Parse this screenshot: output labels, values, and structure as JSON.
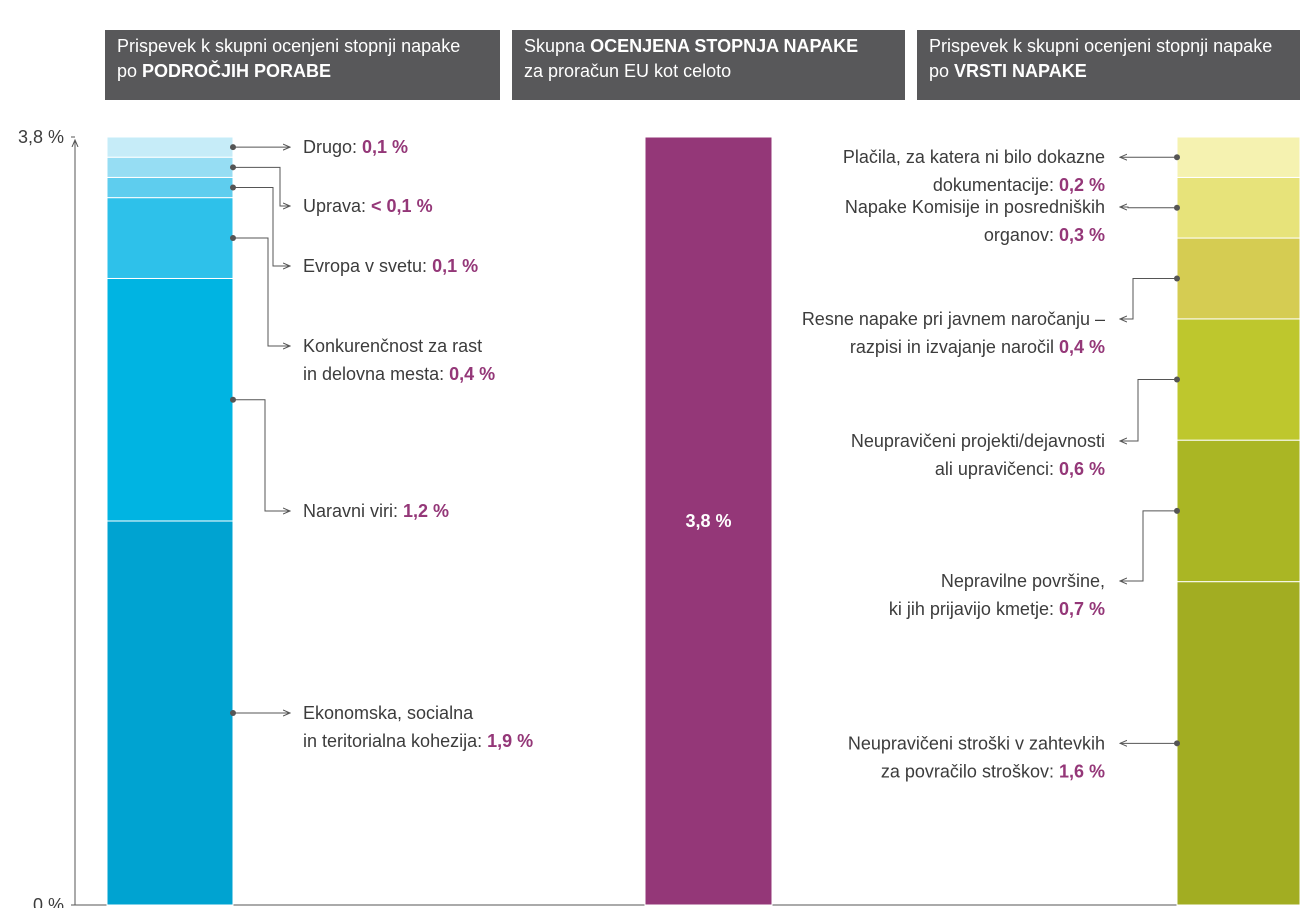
{
  "chart_data": {
    "type": "stacked_bar",
    "ylim": [
      0,
      3.8
    ],
    "yticks": [
      {
        "value": 0,
        "label": "0 %"
      },
      {
        "value": 3.8,
        "label": "3,8 %"
      }
    ],
    "bars": [
      {
        "header": [
          [
            {
              "text": "Prispevek k skupni ocenjeni stopnji napake",
              "bold": false
            }
          ],
          [
            {
              "text": "po",
              "bold": false
            },
            {
              "text": "PODROČJIH PORABE",
              "bold": true
            }
          ]
        ],
        "label_side": "right",
        "segments": [
          {
            "name": [
              "Ekonomska, socialna",
              "in teritorialna kohezija:"
            ],
            "value": 1.9,
            "value_label": "1,9 %",
            "color": "#00a3d1"
          },
          {
            "name": [
              "Naravni viri:"
            ],
            "value": 1.2,
            "value_label": "1,2 %",
            "color": "#00b4e2"
          },
          {
            "name": [
              "Konkurenčnost za rast",
              "in delovna mesta:"
            ],
            "value": 0.4,
            "value_label": "0,4 %",
            "color": "#2ec1ea"
          },
          {
            "name": [
              "Evropa v svetu:"
            ],
            "value": 0.1,
            "value_label": "0,1 %",
            "color": "#5ecdee"
          },
          {
            "name": [
              "Uprava:"
            ],
            "value": 0.1,
            "value_label": "< 0,1 %",
            "color": "#96ddf3"
          },
          {
            "name": [
              "Drugo:"
            ],
            "value": 0.1,
            "value_label": "0,1 %",
            "color": "#c6ecf8"
          }
        ]
      },
      {
        "header": [
          [
            {
              "text": "Skupna",
              "bold": false
            },
            {
              "text": "OCENJENA STOPNJA NAPAKE",
              "bold": true
            }
          ],
          [
            {
              "text": "za proračun EU kot celoto",
              "bold": false
            }
          ]
        ],
        "label_side": "inside",
        "segments": [
          {
            "value": 3.8,
            "value_label": "3,8 %",
            "color": "#943778"
          }
        ]
      },
      {
        "header": [
          [
            {
              "text": "Prispevek k skupni ocenjeni stopnji napake",
              "bold": false
            }
          ],
          [
            {
              "text": "po",
              "bold": false
            },
            {
              "text": "VRSTI NAPAKE",
              "bold": true
            }
          ]
        ],
        "label_side": "left",
        "segments": [
          {
            "name": [
              "Neupravičeni stroški v zahtevkih",
              "za povračilo stroškov:"
            ],
            "value": 1.6,
            "value_label": "1,6 %",
            "color": "#a2ad22"
          },
          {
            "name": [
              "Nepravilne površine,",
              "ki jih prijavijo kmetje:"
            ],
            "value": 0.7,
            "value_label": "0,7 %",
            "color": "#aab624"
          },
          {
            "name": [
              "Neupravičeni projekti/dejavnosti",
              "ali upravičenci:"
            ],
            "value": 0.6,
            "value_label": "0,6 %",
            "color": "#bec72d"
          },
          {
            "name": [
              "Resne napake pri javnem naročanju –",
              "razpisi in izvajanje naročil"
            ],
            "value": 0.4,
            "value_label": "0,4 %",
            "color": "#d5cc52"
          },
          {
            "name": [
              "Napake Komisije in posredniških",
              "organov:"
            ],
            "value": 0.3,
            "value_label": "0,3 %",
            "color": "#e7e37a"
          },
          {
            "name": [
              "Plačila, za katera ni bilo dokazne",
              "dokumentacije:"
            ],
            "value": 0.2,
            "value_label": "0,2 %",
            "color": "#f5f2b0"
          }
        ]
      }
    ]
  }
}
